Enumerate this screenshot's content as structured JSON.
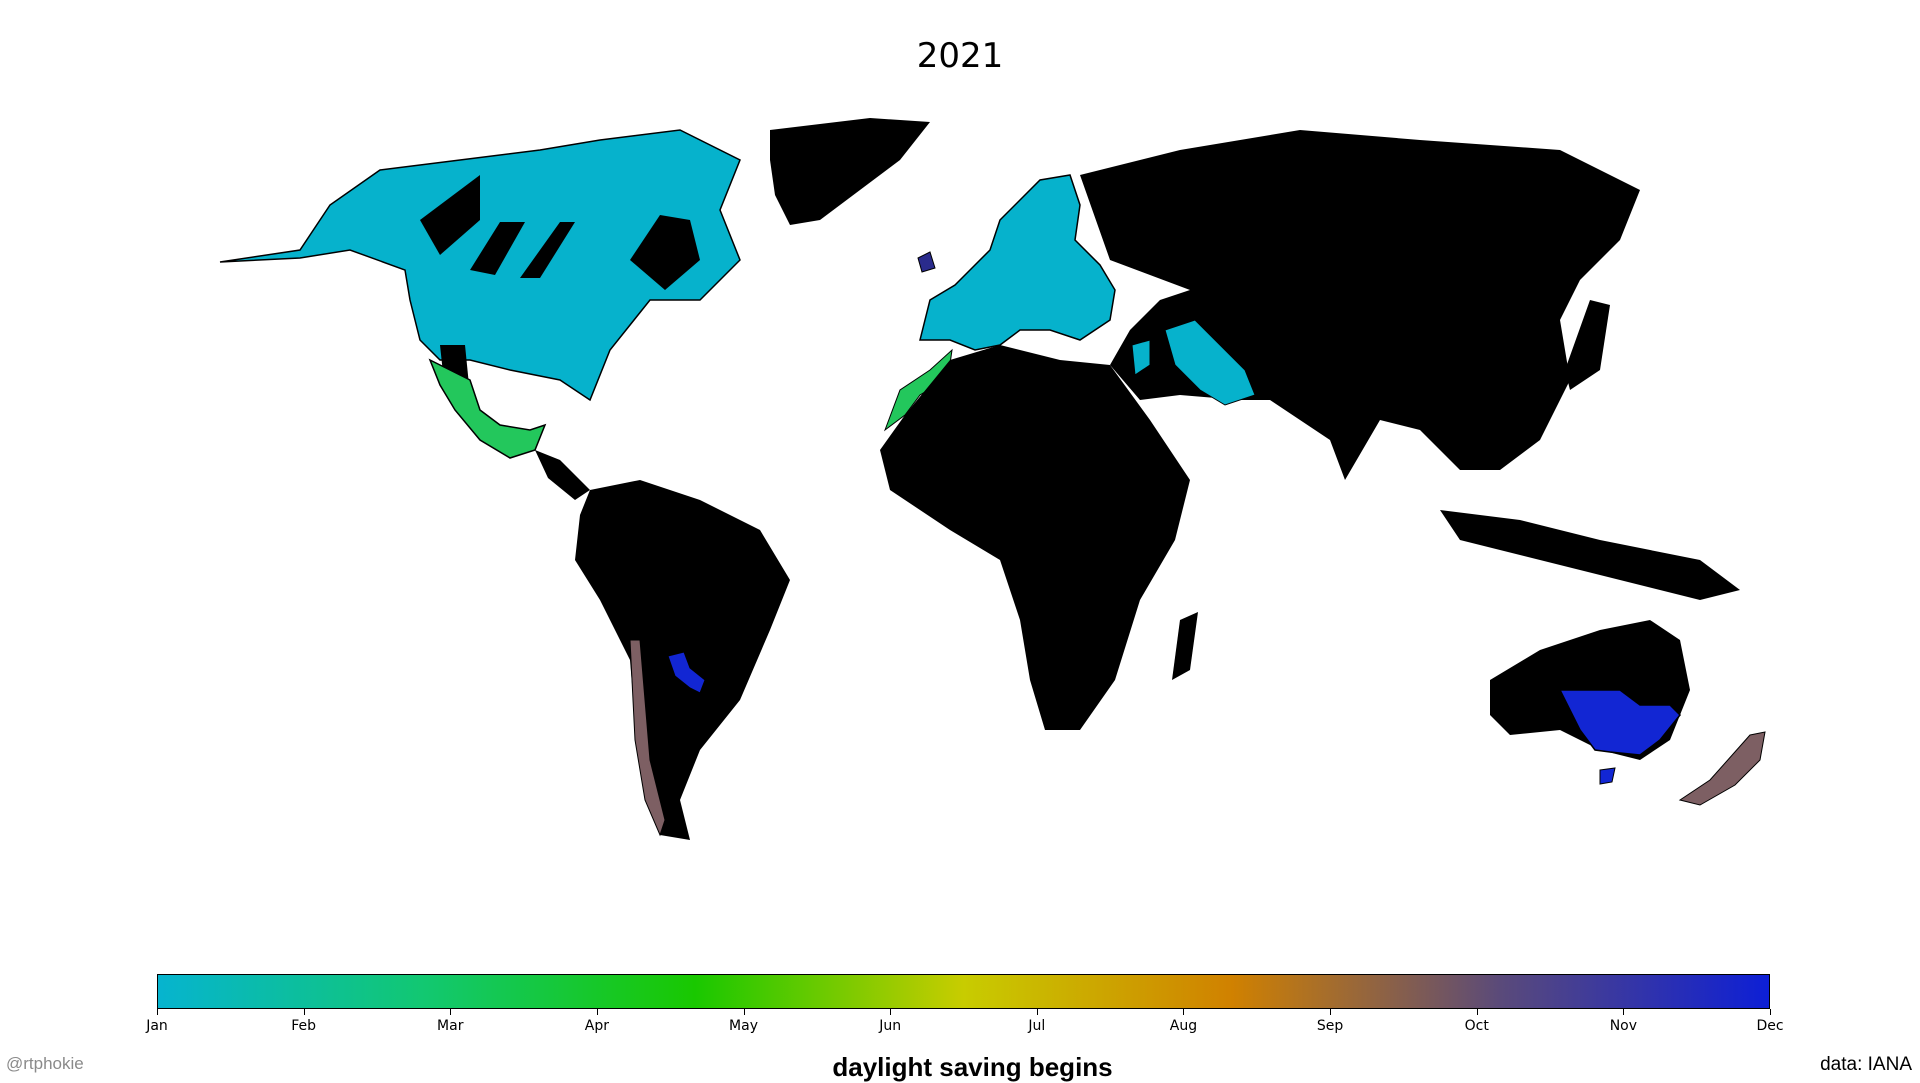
{
  "title": "2021",
  "colorbar": {
    "label": "daylight saving begins",
    "ticks": [
      "Jan",
      "Feb",
      "Mar",
      "Apr",
      "May",
      "Jun",
      "Jul",
      "Aug",
      "Sep",
      "Oct",
      "Nov",
      "Dec"
    ],
    "gradient_colors": [
      "#06b4cf",
      "#12c870",
      "#19c800",
      "#c8cc00",
      "#d08100",
      "#5a4a7a",
      "#0d1fd6"
    ]
  },
  "credit": "@rtphokie",
  "source": "data: IANA",
  "legend_colors": {
    "jan": "#06b2cc",
    "mar": "#23c75c",
    "oct": "#7d5f63",
    "nov": "#1226d3",
    "no_dst": "#000000"
  }
}
